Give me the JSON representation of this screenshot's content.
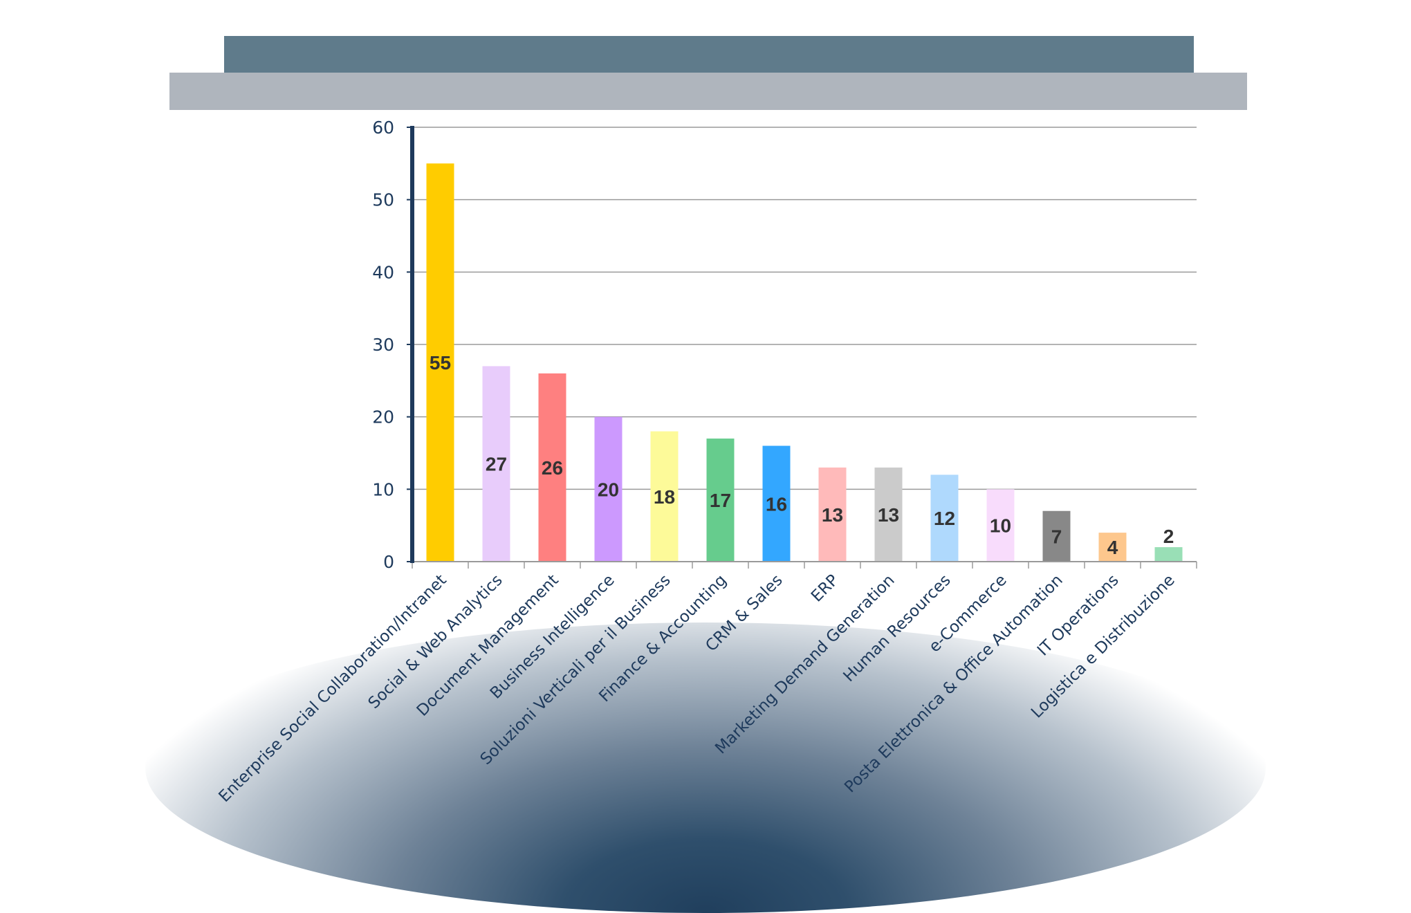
{
  "chart_data": {
    "type": "bar",
    "title": "",
    "xlabel": "",
    "ylabel": "",
    "ylim": [
      0,
      60
    ],
    "yticks": [
      0,
      10,
      20,
      30,
      40,
      50,
      60
    ],
    "grid": true,
    "categories": [
      "Enterprise Social Collaboration/Intranet",
      "Social & Web Analytics",
      "Document Management",
      "Business Intelligence",
      "Soluzioni Verticali per il Business",
      "Finance & Accounting",
      "CRM & Sales",
      "ERP",
      "Marketing Demand Generation",
      "Human Resources",
      "e-Commerce",
      "Posta Elettronica & Office Automation",
      "IT Operations",
      "Logistica e Distribuzione"
    ],
    "values": [
      55,
      27,
      26,
      20,
      18,
      17,
      16,
      13,
      13,
      12,
      10,
      7,
      4,
      2
    ],
    "colors": [
      "#ffcc00",
      "#e8ccfb",
      "#fe8080",
      "#cc99fe",
      "#fdfa99",
      "#66cc8d",
      "#33a7ff",
      "#ffbaba",
      "#cbcbcb",
      "#afd9fd",
      "#f8dcfc",
      "#888888",
      "#fdc78d",
      "#99dfb6"
    ],
    "value_label_color": "#333333",
    "axis_color": "#1e3a5c",
    "grid_color": "#9a9a9a"
  },
  "header": {
    "top_bar_color": "#5f7b8b",
    "bottom_bar_color": "#afb5bd"
  }
}
